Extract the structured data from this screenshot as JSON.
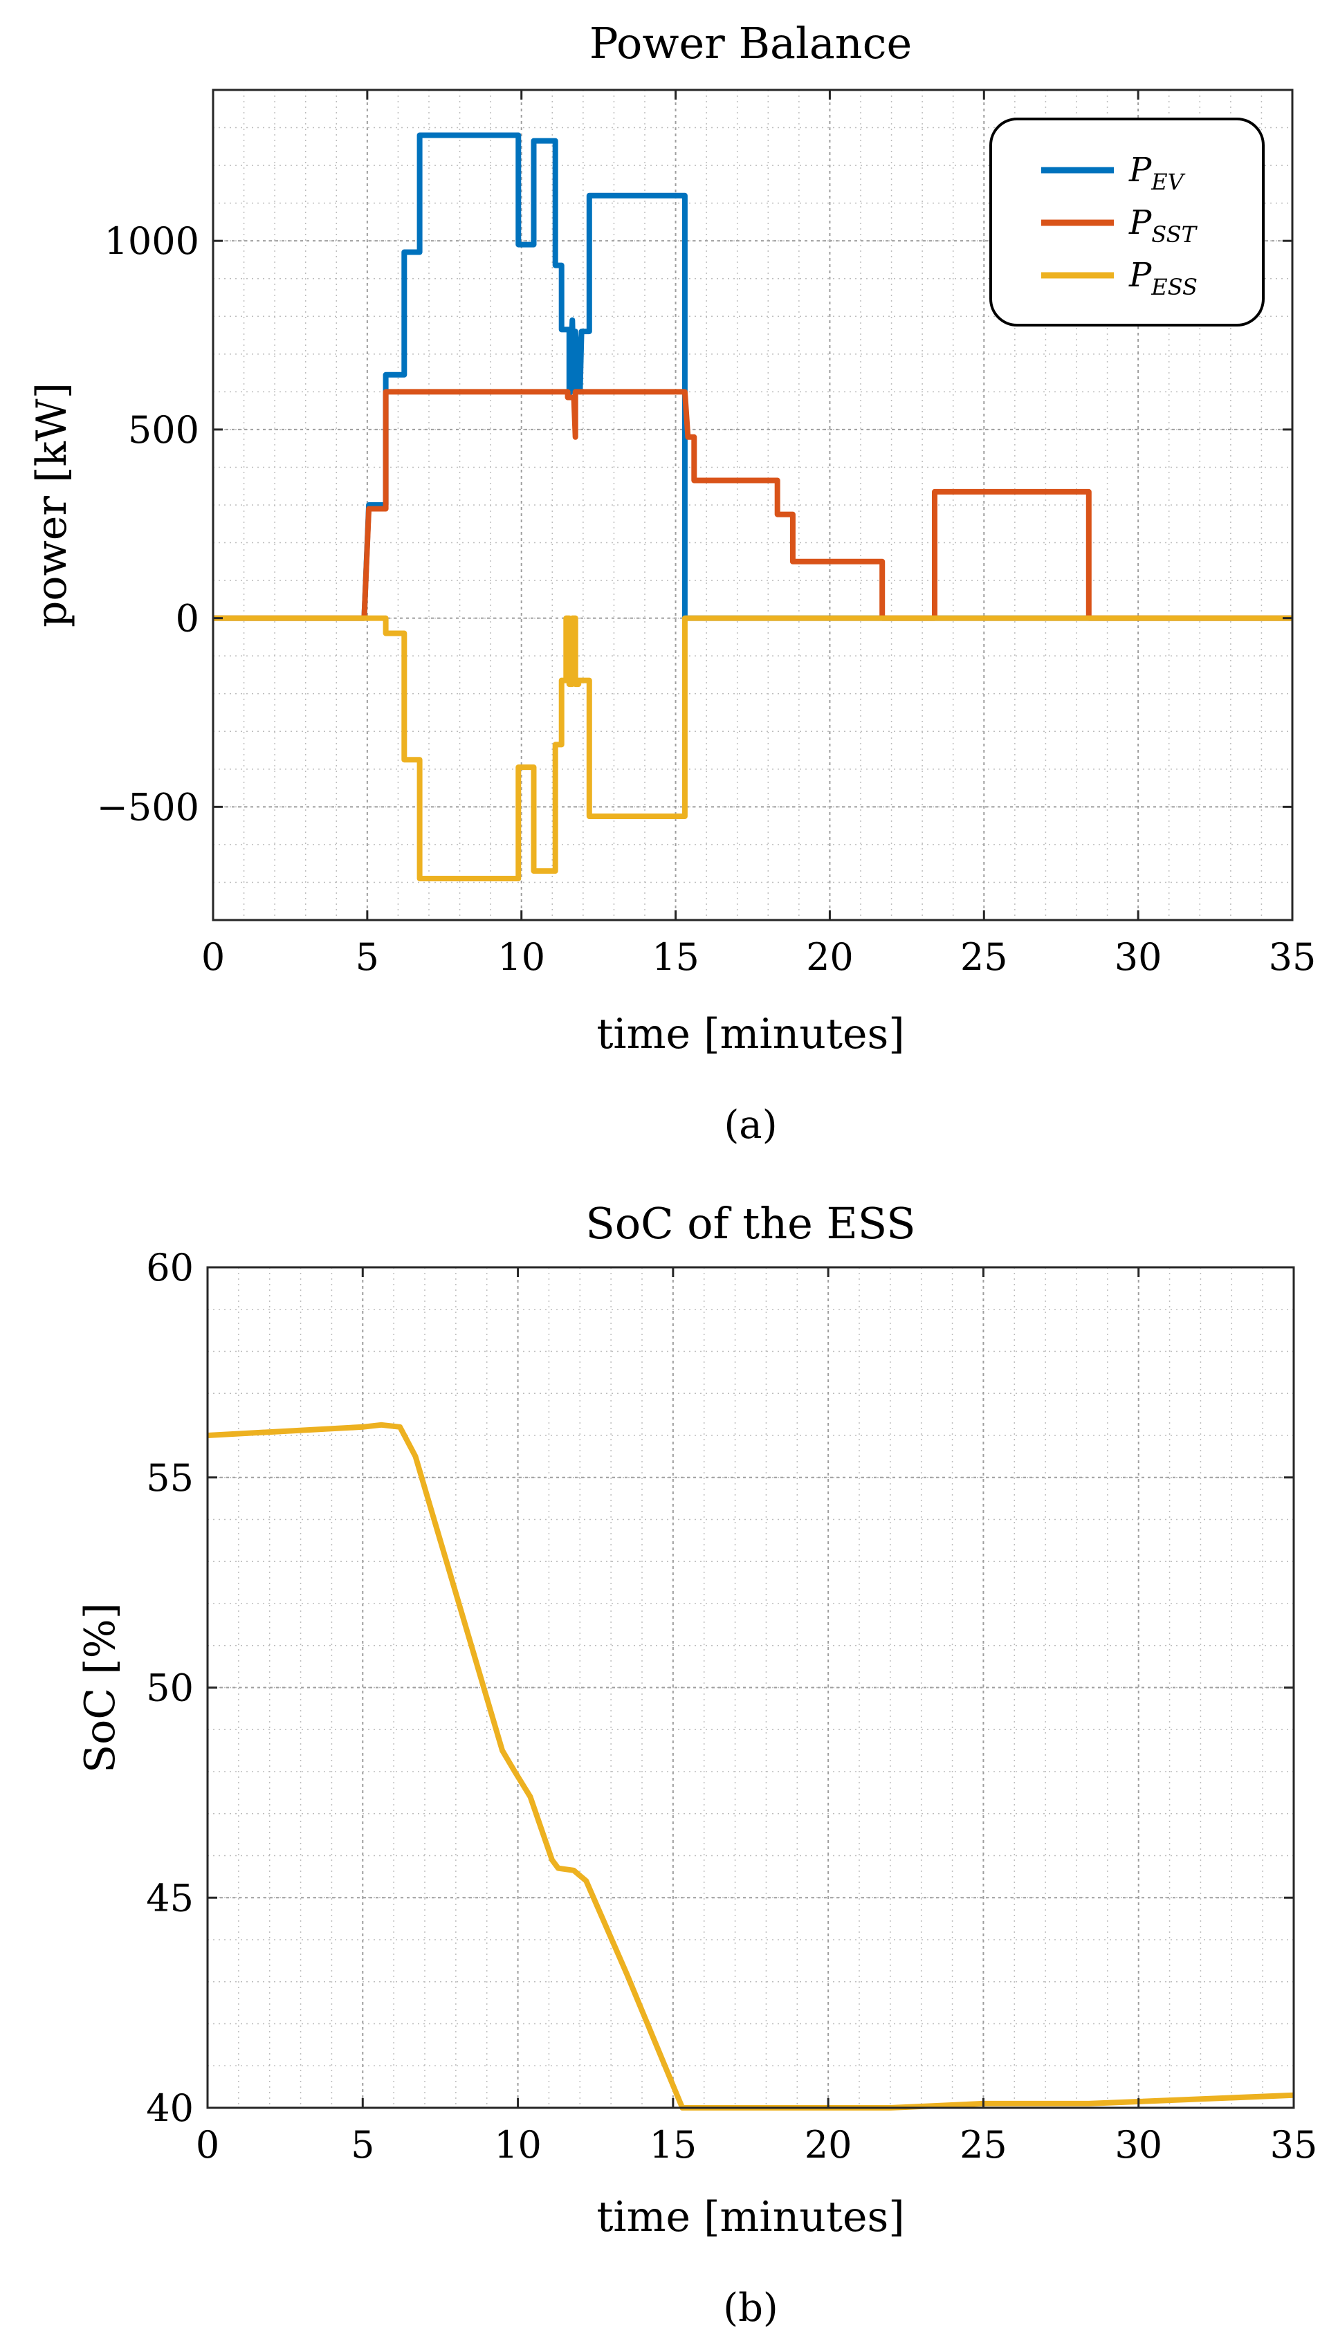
{
  "colors": {
    "ev": "#0072BD",
    "sst": "#D95319",
    "ess": "#EDB120"
  },
  "chart_data": [
    {
      "type": "line",
      "title": "Power Balance",
      "xlabel": "time [minutes]",
      "ylabel": "power [kW]",
      "xlim": [
        0,
        35
      ],
      "ylim": [
        -800,
        1400
      ],
      "xticks": [
        0,
        5,
        10,
        15,
        20,
        25,
        30,
        35
      ],
      "yticks": [
        -500,
        0,
        500,
        1000
      ],
      "ytick_labels": [
        "−500",
        "0",
        "500",
        "1000"
      ],
      "grid": true,
      "legend_position": "top-right",
      "caption": "(a)",
      "series": [
        {
          "name": "P_EV",
          "legend_main": "P",
          "legend_sub": "EV",
          "color": "#0072BD",
          "x": [
            0,
            4.9,
            5.05,
            5.6,
            5.6,
            6.2,
            6.2,
            6.7,
            6.7,
            9.9,
            9.9,
            10.4,
            10.4,
            11.1,
            11.1,
            11.3,
            11.3,
            11.55,
            11.55,
            11.65,
            11.7,
            11.75,
            11.75,
            11.9,
            11.95,
            12.2,
            12.2,
            15.3,
            15.3,
            35
          ],
          "y": [
            0,
            0,
            300,
            300,
            645,
            645,
            970,
            970,
            1280,
            1280,
            990,
            990,
            1265,
            1265,
            935,
            935,
            765,
            765,
            590,
            790,
            600,
            600,
            760,
            600,
            760,
            760,
            1120,
            1120,
            0,
            0
          ]
        },
        {
          "name": "P_SST",
          "legend_main": "P",
          "legend_sub": "SST",
          "color": "#D95319",
          "x": [
            0,
            4.9,
            5.05,
            5.6,
            5.6,
            11.5,
            11.5,
            11.7,
            11.75,
            11.75,
            15.3,
            15.4,
            15.6,
            15.6,
            18.3,
            18.3,
            18.8,
            18.8,
            21.7,
            21.7,
            23.4,
            23.4,
            28.4,
            28.4,
            35
          ],
          "y": [
            0,
            0,
            290,
            290,
            600,
            600,
            585,
            585,
            480,
            600,
            600,
            480,
            480,
            365,
            365,
            275,
            275,
            150,
            150,
            0,
            0,
            335,
            335,
            0,
            0
          ]
        },
        {
          "name": "P_ESS",
          "legend_main": "P",
          "legend_sub": "ESS",
          "color": "#EDB120",
          "x": [
            0,
            5.6,
            5.6,
            6.2,
            6.2,
            6.7,
            6.7,
            9.9,
            9.9,
            10.4,
            10.4,
            11.1,
            11.1,
            11.3,
            11.3,
            11.45,
            11.45,
            11.55,
            11.55,
            11.65,
            11.65,
            11.75,
            11.75,
            11.85,
            11.85,
            12.2,
            12.2,
            15.3,
            15.3,
            35
          ],
          "y": [
            0,
            0,
            -40,
            -40,
            -375,
            -375,
            -690,
            -690,
            -395,
            -395,
            -670,
            -670,
            -335,
            -335,
            -165,
            -165,
            0,
            0,
            -175,
            -175,
            0,
            0,
            -175,
            -175,
            -165,
            -165,
            -525,
            -525,
            0,
            0
          ]
        }
      ]
    },
    {
      "type": "line",
      "title": "SoC of the ESS",
      "xlabel": "time [minutes]",
      "ylabel": "SoC [%]",
      "xlim": [
        0,
        35
      ],
      "ylim": [
        40,
        60
      ],
      "xticks": [
        0,
        5,
        10,
        15,
        20,
        25,
        30,
        35
      ],
      "yticks": [
        40,
        45,
        50,
        55,
        60
      ],
      "ytick_labels": [
        "40",
        "45",
        "50",
        "55",
        "60"
      ],
      "grid": true,
      "caption": "(b)",
      "series": [
        {
          "color": "#EDB120",
          "x": [
            0,
            5.0,
            5.6,
            6.2,
            6.7,
            7.5,
            8.5,
            9.5,
            9.9,
            10.4,
            11.1,
            11.3,
            11.8,
            12.2,
            13.5,
            15.3,
            20,
            22,
            25,
            28.4,
            35
          ],
          "y": [
            56.0,
            56.2,
            56.25,
            56.2,
            55.5,
            53.5,
            51.0,
            48.5,
            48.0,
            47.4,
            45.9,
            45.7,
            45.65,
            45.4,
            43.2,
            40.0,
            40.0,
            40.0,
            40.1,
            40.1,
            40.3
          ]
        }
      ]
    }
  ]
}
